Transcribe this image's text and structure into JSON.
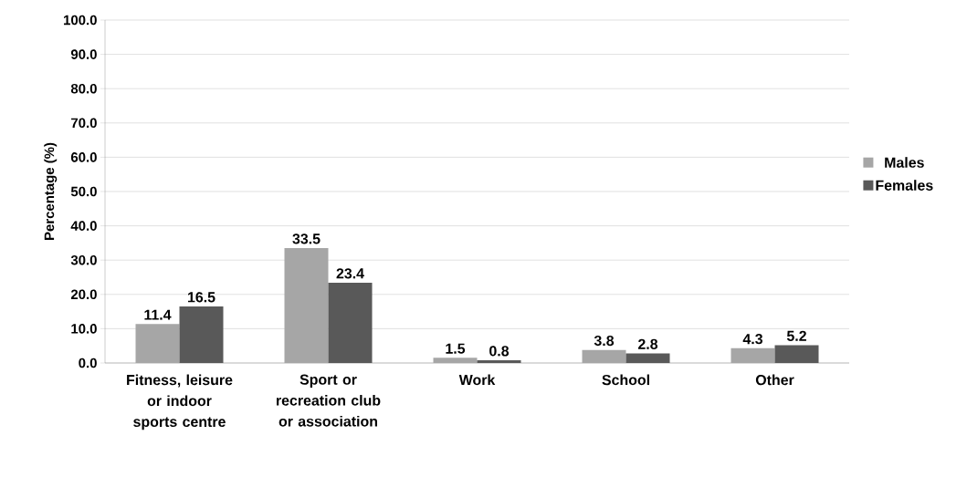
{
  "chart_data": {
    "type": "bar",
    "ylabel": "Percentage (%)",
    "categories": [
      "Fitness, leisure or indoor sports centre",
      "Sport or recreation club or association",
      "Work",
      "School",
      "Other"
    ],
    "series": [
      {
        "name": "Males",
        "color": "#a6a6a6",
        "values": [
          11.4,
          33.5,
          1.5,
          3.8,
          4.3
        ]
      },
      {
        "name": "Females",
        "color": "#595959",
        "values": [
          16.5,
          23.4,
          0.8,
          2.8,
          5.2
        ]
      }
    ],
    "ylim": [
      0,
      100
    ],
    "yticks": [
      {
        "value": 0,
        "label": "0.0"
      },
      {
        "value": 10,
        "label": "10.0"
      },
      {
        "value": 20,
        "label": "20.0"
      },
      {
        "value": 30,
        "label": "30.0"
      },
      {
        "value": 40,
        "label": "40.0"
      },
      {
        "value": 50,
        "label": "50.0"
      },
      {
        "value": 60,
        "label": "60.0"
      },
      {
        "value": 70,
        "label": "70.0"
      },
      {
        "value": 80,
        "label": "80.0"
      },
      {
        "value": 90,
        "label": "90.0"
      },
      {
        "value": 100,
        "label": "100.0"
      }
    ],
    "grid": "y",
    "legend": "right",
    "data_labels": true
  }
}
